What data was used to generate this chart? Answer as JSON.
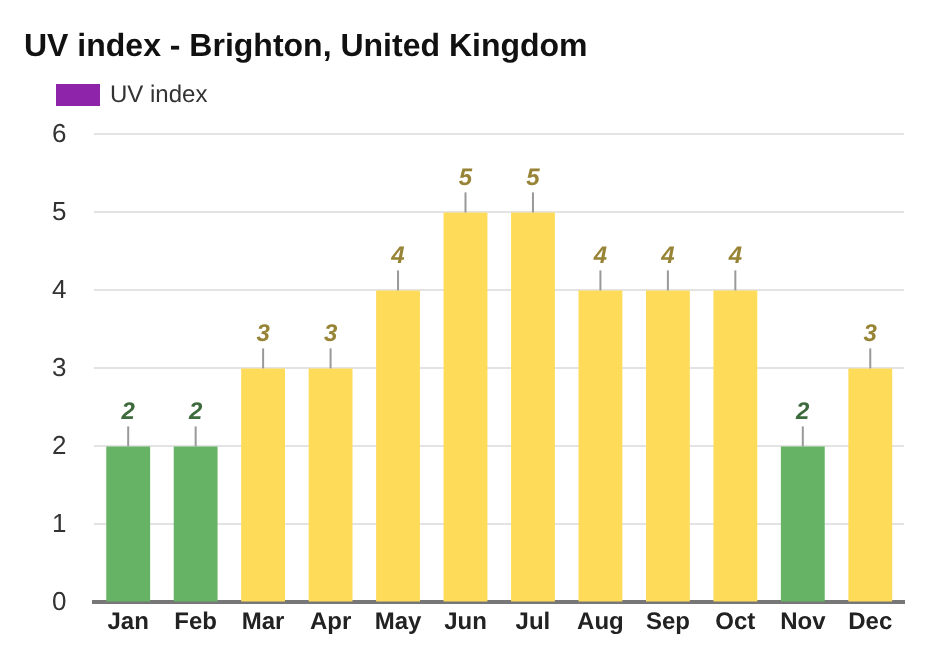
{
  "chart_data": {
    "type": "bar",
    "title": "UV index - Brighton, United Kingdom",
    "categories": [
      "Jan",
      "Feb",
      "Mar",
      "Apr",
      "May",
      "Jun",
      "Jul",
      "Aug",
      "Sep",
      "Oct",
      "Nov",
      "Dec"
    ],
    "series": [
      {
        "name": "UV index",
        "color": "#8e24aa",
        "values": [
          2,
          2,
          3,
          3,
          4,
          5,
          5,
          4,
          4,
          4,
          2,
          3
        ],
        "colors": [
          "#66b366",
          "#66b366",
          "#fedc5a",
          "#fedc5a",
          "#fedc5a",
          "#fedc5a",
          "#fedc5a",
          "#fedc5a",
          "#fedc5a",
          "#fedc5a",
          "#66b366",
          "#fedc5a"
        ]
      }
    ],
    "ylim": [
      0,
      6
    ],
    "yticks": [
      0,
      1,
      2,
      3,
      4,
      5,
      6
    ],
    "grid": "y",
    "legend": "top left",
    "data_labels": true
  }
}
